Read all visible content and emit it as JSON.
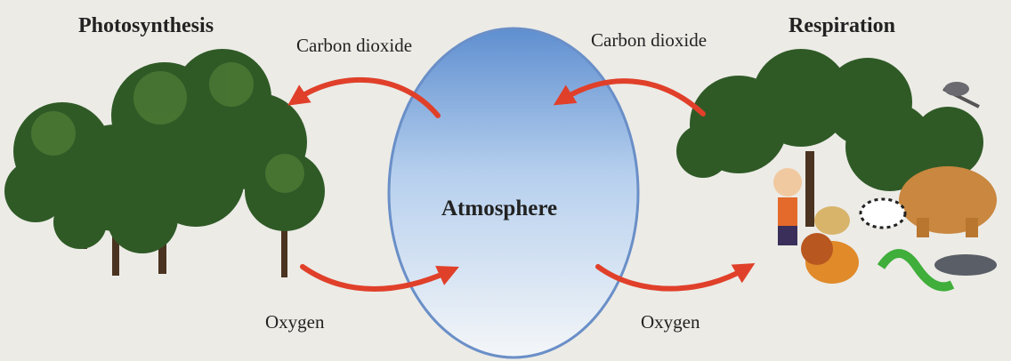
{
  "diagram": {
    "left": {
      "title": "Photosynthesis",
      "input": "Carbon dioxide",
      "output": "Oxygen"
    },
    "center": "Atmosphere",
    "right": {
      "title": "Respiration",
      "input": "Carbon dioxide",
      "output": "Oxygen"
    }
  }
}
